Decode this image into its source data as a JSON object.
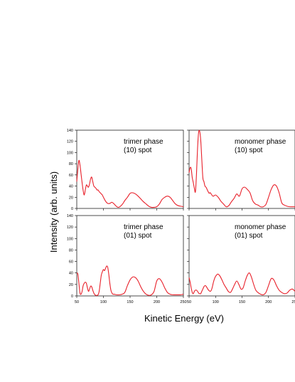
{
  "chart_data": {
    "type": "line",
    "ylabel": "Intensity (arb. units)",
    "xlabel": "Kinetic Energy (eV)",
    "line_color": "#e8202a",
    "xlim": [
      50,
      250
    ],
    "ylim": [
      0,
      140
    ],
    "xticks": [
      50,
      100,
      150,
      200,
      250
    ],
    "yticks": [
      0,
      20,
      40,
      60,
      80,
      100,
      120,
      140
    ],
    "panels": [
      {
        "label_line1": "trimer phase",
        "label_line2": "(10) spot",
        "x": [
          50,
          52,
          54,
          56,
          58,
          60,
          62,
          64,
          66,
          68,
          70,
          72,
          74,
          76,
          78,
          80,
          82,
          84,
          86,
          88,
          90,
          92,
          94,
          96,
          98,
          100,
          104,
          108,
          112,
          116,
          120,
          124,
          128,
          132,
          136,
          140,
          145,
          150,
          155,
          160,
          165,
          170,
          175,
          180,
          185,
          190,
          195,
          200,
          205,
          210,
          215,
          220,
          225,
          230,
          235,
          240,
          245,
          250
        ],
        "y": [
          48,
          70,
          86,
          78,
          62,
          46,
          32,
          24,
          33,
          42,
          40,
          38,
          44,
          53,
          56,
          48,
          40,
          38,
          36,
          33,
          33,
          30,
          28,
          26,
          24,
          20,
          13,
          9,
          9,
          11,
          8,
          4,
          2,
          4,
          8,
          14,
          20,
          27,
          28,
          26,
          22,
          17,
          12,
          8,
          4,
          2,
          2,
          3,
          8,
          16,
          20,
          22,
          20,
          14,
          8,
          5,
          4,
          3
        ]
      },
      {
        "label_line1": "monomer phase",
        "label_line2": "(10) spot",
        "x": [
          50,
          52,
          54,
          56,
          58,
          60,
          62,
          64,
          66,
          68,
          70,
          72,
          74,
          76,
          78,
          80,
          82,
          84,
          86,
          88,
          90,
          95,
          100,
          105,
          110,
          115,
          120,
          125,
          130,
          135,
          140,
          145,
          150,
          155,
          160,
          165,
          170,
          175,
          180,
          185,
          190,
          195,
          200,
          205,
          210,
          215,
          220,
          225,
          230,
          235,
          240,
          245,
          250
        ],
        "y": [
          64,
          73,
          71,
          55,
          46,
          36,
          30,
          62,
          108,
          136,
          138,
          122,
          88,
          55,
          48,
          40,
          38,
          34,
          30,
          27,
          28,
          22,
          24,
          20,
          13,
          8,
          3,
          5,
          12,
          18,
          26,
          22,
          35,
          38,
          34,
          28,
          14,
          8,
          6,
          3,
          3,
          7,
          20,
          34,
          42,
          40,
          28,
          10,
          6,
          4,
          3,
          3,
          3
        ]
      },
      {
        "label_line1": "trimer phase",
        "label_line2": "(01) spot",
        "x": [
          50,
          52,
          54,
          56,
          58,
          60,
          62,
          64,
          66,
          68,
          70,
          72,
          74,
          76,
          78,
          80,
          82,
          84,
          86,
          88,
          90,
          92,
          94,
          96,
          98,
          100,
          102,
          104,
          106,
          108,
          110,
          112,
          114,
          116,
          118,
          120,
          125,
          130,
          135,
          140,
          145,
          150,
          155,
          160,
          165,
          170,
          175,
          180,
          185,
          190,
          195,
          200,
          205,
          210,
          215,
          220,
          225,
          230,
          235,
          240,
          245,
          250
        ],
        "y": [
          40,
          38,
          22,
          5,
          3,
          8,
          18,
          22,
          24,
          22,
          14,
          8,
          12,
          17,
          16,
          10,
          5,
          2,
          1,
          1,
          2,
          8,
          22,
          36,
          42,
          46,
          44,
          48,
          52,
          50,
          38,
          22,
          10,
          5,
          3,
          3,
          2,
          2,
          3,
          6,
          18,
          28,
          33,
          32,
          26,
          16,
          8,
          3,
          1,
          2,
          8,
          26,
          30,
          24,
          14,
          6,
          3,
          2,
          2,
          2,
          2,
          3
        ]
      },
      {
        "label_line1": "monomer phase",
        "label_line2": "(01) spot",
        "x": [
          50,
          52,
          54,
          56,
          58,
          60,
          62,
          64,
          66,
          68,
          70,
          72,
          74,
          76,
          78,
          80,
          82,
          84,
          86,
          88,
          90,
          92,
          94,
          96,
          98,
          100,
          104,
          108,
          112,
          116,
          120,
          124,
          128,
          132,
          136,
          140,
          144,
          148,
          152,
          156,
          160,
          164,
          168,
          172,
          176,
          180,
          185,
          190,
          195,
          200,
          205,
          210,
          215,
          220,
          225,
          230,
          235,
          240,
          245,
          250
        ],
        "y": [
          32,
          24,
          14,
          6,
          4,
          8,
          10,
          10,
          8,
          5,
          4,
          4,
          8,
          12,
          16,
          18,
          17,
          14,
          11,
          9,
          8,
          10,
          16,
          24,
          30,
          34,
          38,
          35,
          28,
          20,
          14,
          8,
          6,
          12,
          20,
          26,
          20,
          12,
          14,
          26,
          36,
          40,
          32,
          20,
          10,
          6,
          3,
          2,
          6,
          18,
          30,
          28,
          18,
          10,
          6,
          4,
          5,
          10,
          12,
          8
        ]
      }
    ]
  }
}
